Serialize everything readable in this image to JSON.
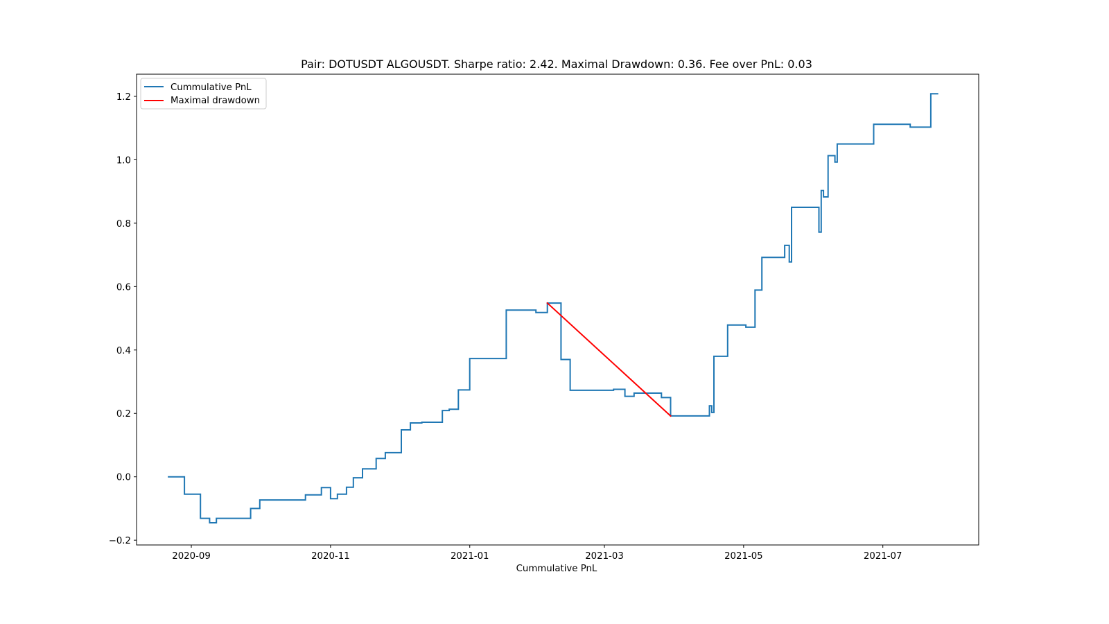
{
  "chart_data": {
    "type": "line",
    "title": "Pair: DOTUSDT ALGOUSDT. Sharpe ratio: 2.42. Maximal Drawdown: 0.36. Fee over PnL: 0.03",
    "xlabel": "Cummulative PnL",
    "ylabel": "",
    "xlim": [
      "2020-08-08",
      "2021-08-12"
    ],
    "ylim": [
      -0.215,
      1.27
    ],
    "x_ticks": [
      "2020-09",
      "2020-11",
      "2021-01",
      "2021-03",
      "2021-05",
      "2021-07"
    ],
    "y_ticks": [
      "−0.2",
      "0.0",
      "0.2",
      "0.4",
      "0.6",
      "0.8",
      "1.0",
      "1.2"
    ],
    "y_tick_values": [
      -0.2,
      0.0,
      0.2,
      0.4,
      0.6,
      0.8,
      1.0,
      1.2
    ],
    "grid": false,
    "legend_position": "upper-left",
    "series": [
      {
        "name": "Cummulative PnL",
        "color": "#1f77b4",
        "step": true,
        "points": [
          [
            "2020-08-22",
            0.0
          ],
          [
            "2020-08-26",
            0.0
          ],
          [
            "2020-08-29",
            -0.055
          ],
          [
            "2020-09-01",
            -0.055
          ],
          [
            "2020-09-05",
            -0.131
          ],
          [
            "2020-09-08",
            -0.131
          ],
          [
            "2020-09-09",
            -0.145
          ],
          [
            "2020-09-12",
            -0.131
          ],
          [
            "2020-09-25",
            -0.131
          ],
          [
            "2020-09-27",
            -0.1
          ],
          [
            "2020-10-01",
            -0.073
          ],
          [
            "2020-10-13",
            -0.073
          ],
          [
            "2020-10-21",
            -0.057
          ],
          [
            "2020-10-28",
            -0.034
          ],
          [
            "2020-11-01",
            -0.069
          ],
          [
            "2020-11-04",
            -0.055
          ],
          [
            "2020-11-08",
            -0.033
          ],
          [
            "2020-11-11",
            -0.003
          ],
          [
            "2020-11-15",
            0.025
          ],
          [
            "2020-11-21",
            0.058
          ],
          [
            "2020-11-25",
            0.076
          ],
          [
            "2020-12-02",
            0.148
          ],
          [
            "2020-12-06",
            0.17
          ],
          [
            "2020-12-11",
            0.172
          ],
          [
            "2020-12-20",
            0.209
          ],
          [
            "2020-12-23",
            0.213
          ],
          [
            "2020-12-27",
            0.274
          ],
          [
            "2021-01-01",
            0.373
          ],
          [
            "2021-01-11",
            0.373
          ],
          [
            "2021-01-17",
            0.526
          ],
          [
            "2021-01-29",
            0.526
          ],
          [
            "2021-01-30",
            0.518
          ],
          [
            "2021-02-04",
            0.548
          ],
          [
            "2021-02-10",
            0.37
          ],
          [
            "2021-02-14",
            0.273
          ],
          [
            "2021-03-05",
            0.276
          ],
          [
            "2021-03-10",
            0.254
          ],
          [
            "2021-03-14",
            0.264
          ],
          [
            "2021-03-22",
            0.264
          ],
          [
            "2021-03-26",
            0.25
          ],
          [
            "2021-03-30",
            0.192
          ],
          [
            "2021-04-12",
            0.192
          ],
          [
            "2021-04-16",
            0.224
          ],
          [
            "2021-04-17",
            0.203
          ],
          [
            "2021-04-18",
            0.38
          ],
          [
            "2021-04-24",
            0.479
          ],
          [
            "2021-05-01",
            0.479
          ],
          [
            "2021-05-02",
            0.472
          ],
          [
            "2021-05-06",
            0.589
          ],
          [
            "2021-05-09",
            0.692
          ],
          [
            "2021-05-16",
            0.692
          ],
          [
            "2021-05-19",
            0.73
          ],
          [
            "2021-05-21",
            0.678
          ],
          [
            "2021-05-22",
            0.85
          ],
          [
            "2021-06-01",
            0.85
          ],
          [
            "2021-06-03",
            0.772
          ],
          [
            "2021-06-04",
            0.903
          ],
          [
            "2021-06-05",
            0.883
          ],
          [
            "2021-06-07",
            1.013
          ],
          [
            "2021-06-10",
            0.993
          ],
          [
            "2021-06-11",
            1.05
          ],
          [
            "2021-06-20",
            1.05
          ],
          [
            "2021-06-27",
            1.112
          ],
          [
            "2021-07-03",
            1.112
          ],
          [
            "2021-07-13",
            1.103
          ],
          [
            "2021-07-21",
            1.103
          ],
          [
            "2021-07-22",
            1.208
          ],
          [
            "2021-07-25",
            1.208
          ]
        ]
      },
      {
        "name": "Maximal drawdown",
        "color": "#ff0000",
        "step": false,
        "points": [
          [
            "2021-02-04",
            0.548
          ],
          [
            "2021-03-30",
            0.192
          ]
        ]
      }
    ]
  }
}
